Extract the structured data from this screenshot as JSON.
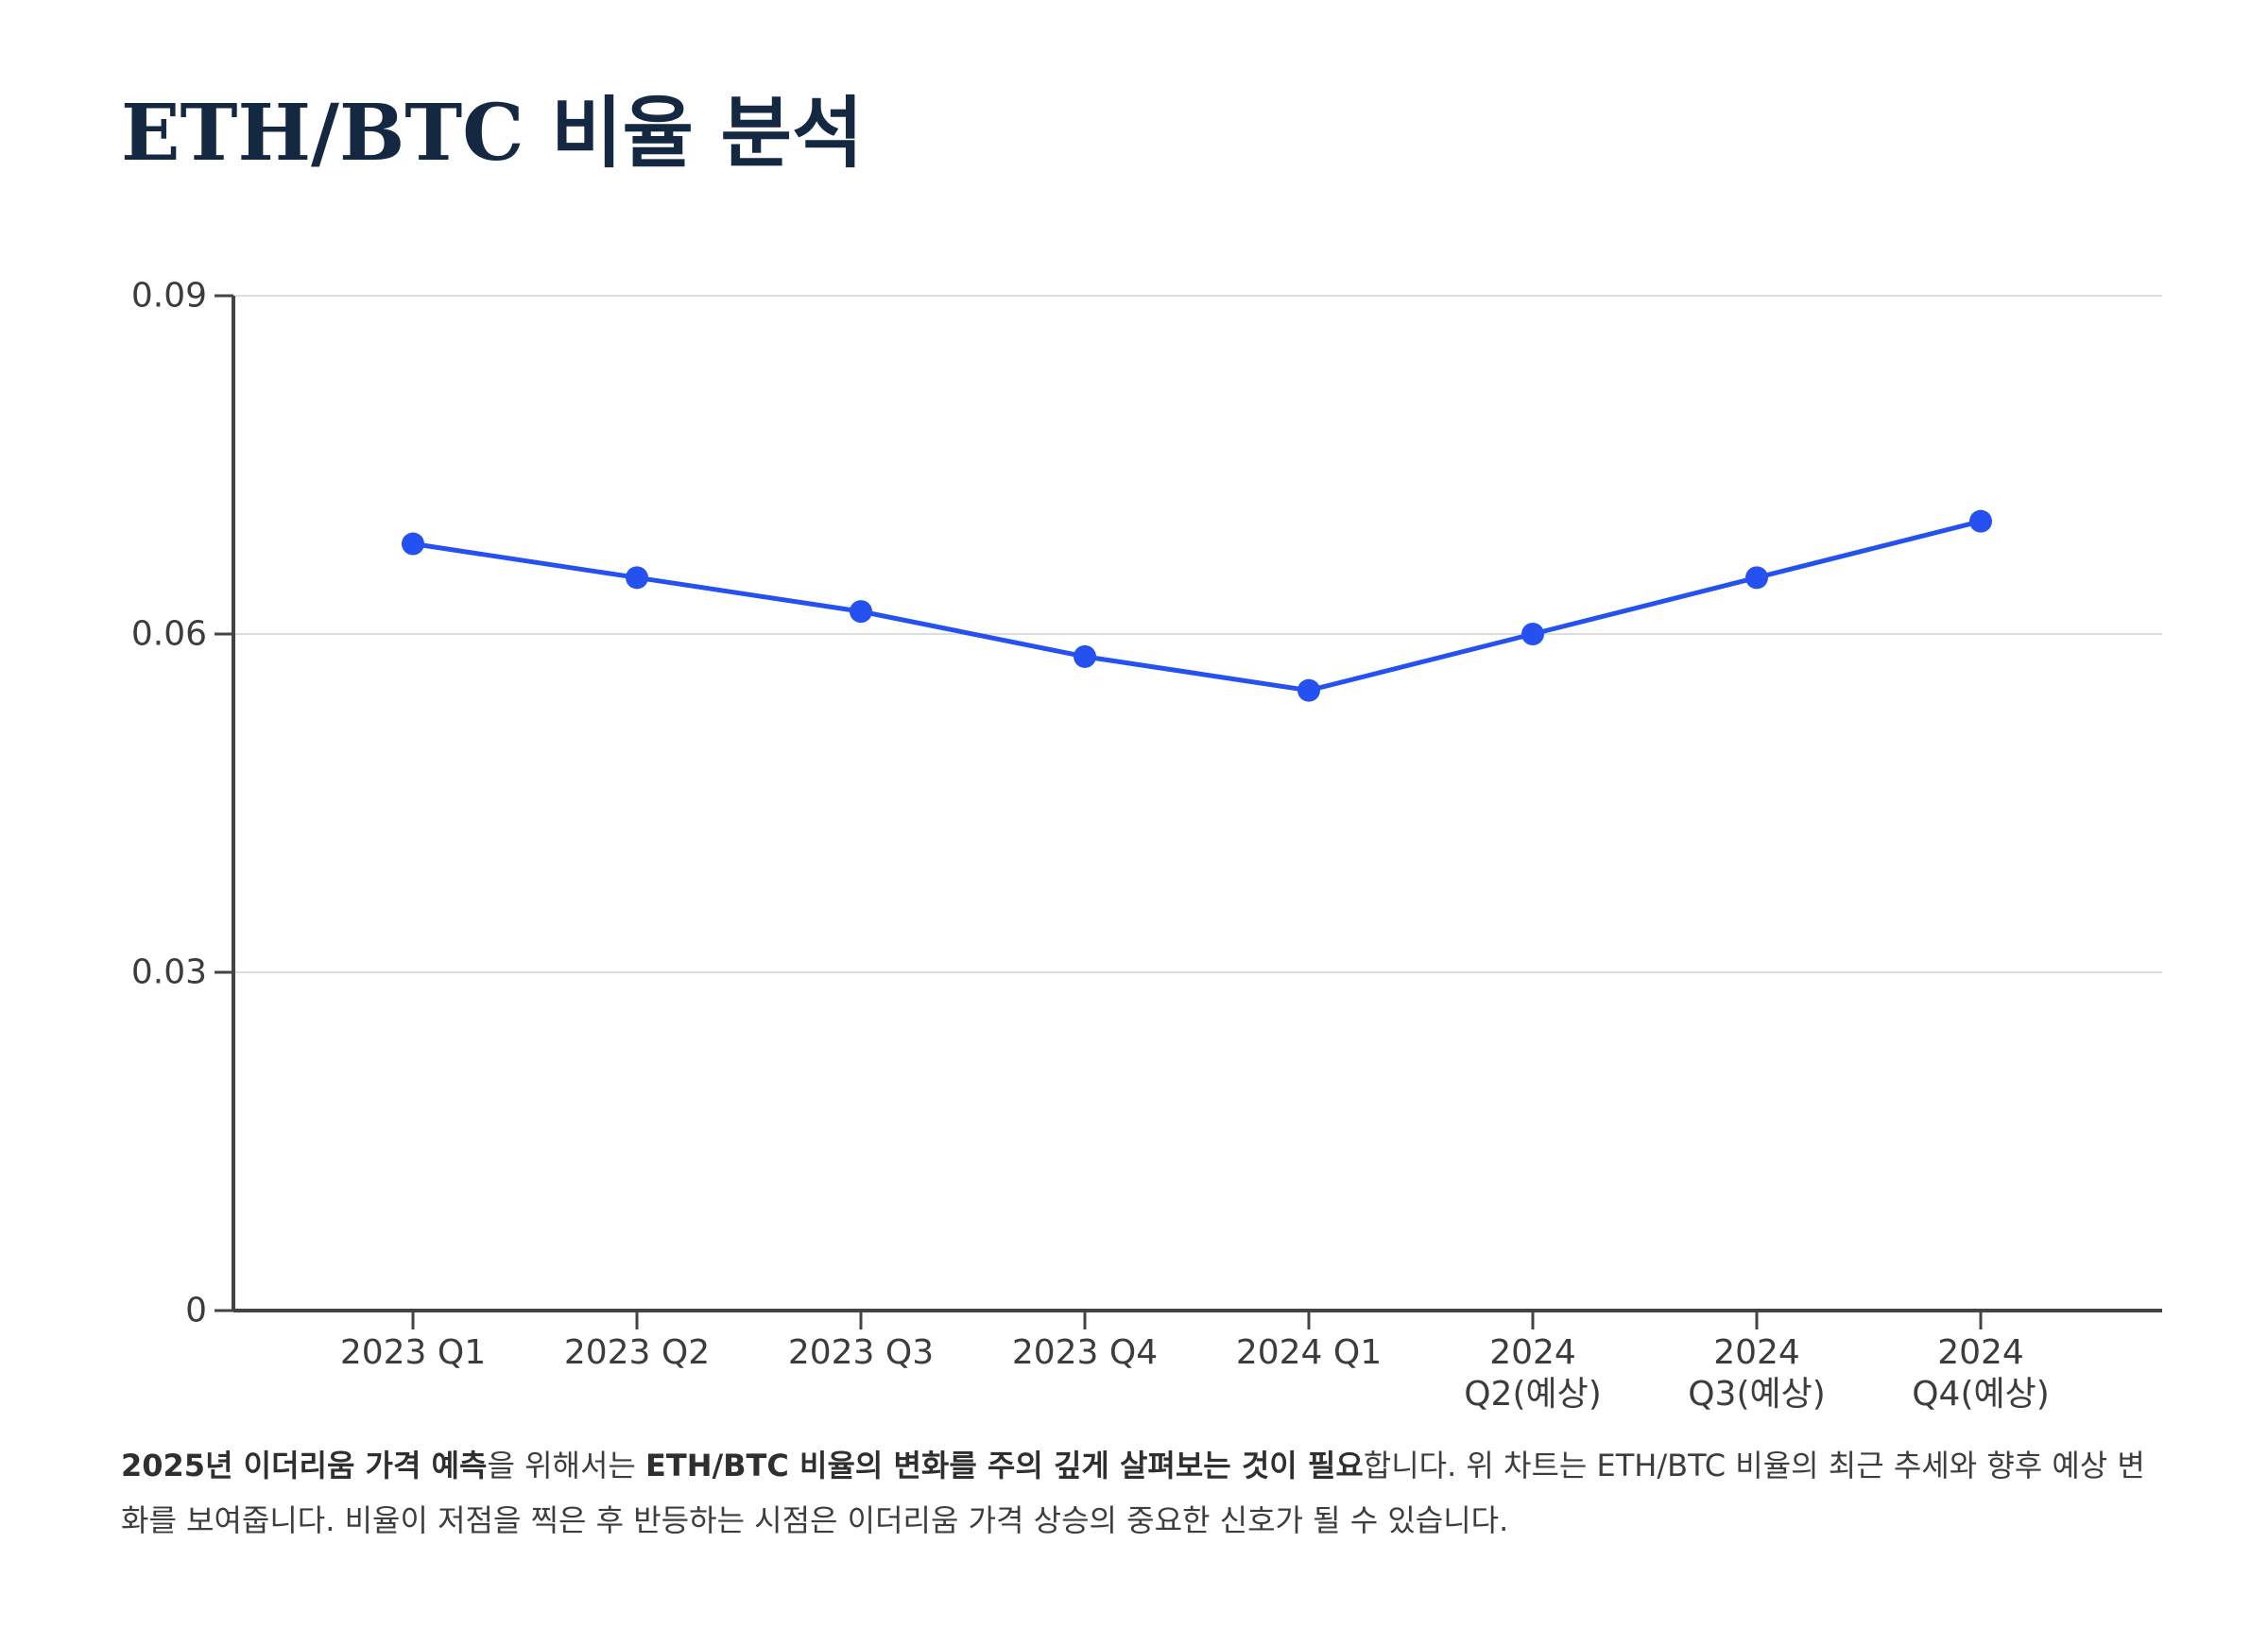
{
  "page": {
    "title": "ETH/BTC 비율 분석"
  },
  "chart_data": {
    "type": "line",
    "title": "ETH/BTC 비율 분석",
    "categories": [
      "2023 Q1",
      "2023 Q2",
      "2023 Q3",
      "2023 Q4",
      "2024 Q1",
      "2024 Q2(예상)",
      "2024 Q3(예상)",
      "2024 Q4(예상)"
    ],
    "category_label_lines": [
      [
        "2023 Q1"
      ],
      [
        "2023 Q2"
      ],
      [
        "2023 Q3"
      ],
      [
        "2023 Q4"
      ],
      [
        "2024 Q1"
      ],
      [
        "2024",
        "Q2(예상)"
      ],
      [
        "2024",
        "Q3(예상)"
      ],
      [
        "2024",
        "Q4(예상)"
      ]
    ],
    "series": [
      {
        "values": [
          0.068,
          0.065,
          0.062,
          0.058,
          0.055,
          0.06,
          0.065,
          0.07
        ],
        "color": "#2451f0"
      }
    ],
    "ylim": [
      0,
      0.09
    ],
    "yticks": [
      0,
      0.03,
      0.06,
      0.09
    ],
    "ytick_labels": [
      "0",
      "0.03",
      "0.06",
      "0.09"
    ],
    "xlabel": "",
    "ylabel": "",
    "grid": "horizontal",
    "legend": "none",
    "colors": {
      "line": "#2451f0",
      "axis": "#444444",
      "grid": "#dddddd"
    }
  },
  "caption": {
    "parts": [
      {
        "text": "2025년 이더리움 가격 예측",
        "bold": true
      },
      {
        "text": "을 위해서는 ",
        "bold": false
      },
      {
        "text": "ETH/BTC 비율의 변화를 주의 깊게 살펴보는 것이 필요",
        "bold": true
      },
      {
        "text": "합니다. 위 차트는 ETH/BTC 비율의 최근 추세와 향후 예상 변화를 보여줍니다. 비율이 저점을 찍은 후 반등하는 시점은 이더리움 가격 상승의 중요한 신호가 될 수 있습니다.",
        "bold": false
      }
    ]
  }
}
